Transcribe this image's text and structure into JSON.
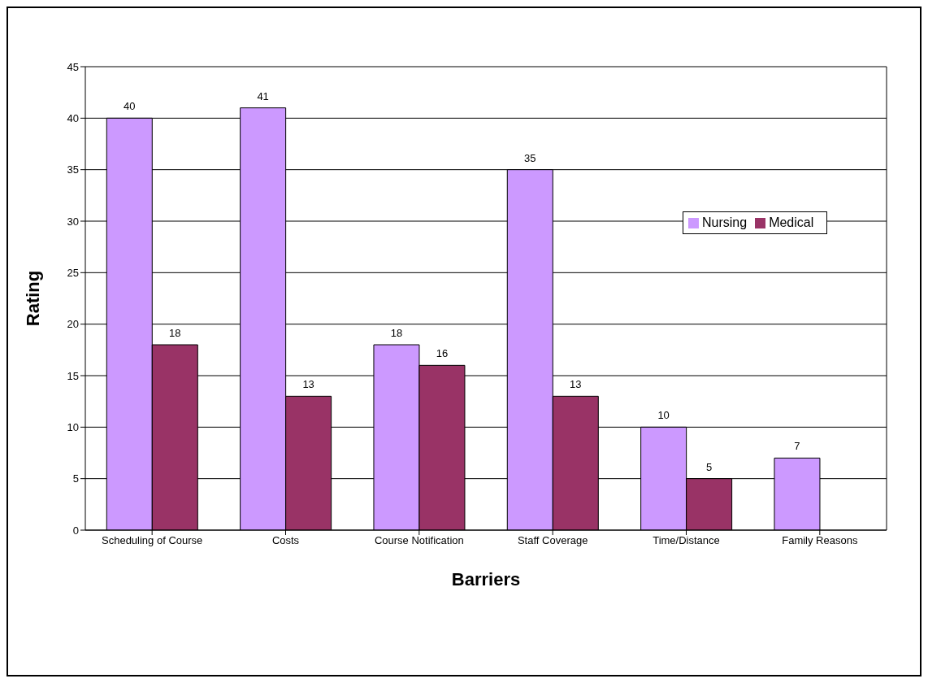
{
  "chart_data": {
    "type": "bar",
    "xlabel": "Barriers",
    "ylabel": "Rating",
    "categories": [
      "Scheduling of Course",
      "Costs",
      "Course Notification",
      "Staff Coverage",
      "Time/Distance",
      "Family Reasons"
    ],
    "series": [
      {
        "name": "Nursing",
        "color": "#cc99ff",
        "values": [
          40,
          41,
          18,
          35,
          10,
          7
        ]
      },
      {
        "name": "Medical",
        "color": "#993366",
        "values": [
          18,
          13,
          16,
          13,
          5,
          null
        ]
      }
    ],
    "ylim": [
      0,
      45
    ],
    "yticks": [
      0,
      5,
      10,
      15,
      20,
      25,
      30,
      35,
      40,
      45
    ],
    "grid": "y",
    "legend": "right",
    "data_labels": true
  }
}
